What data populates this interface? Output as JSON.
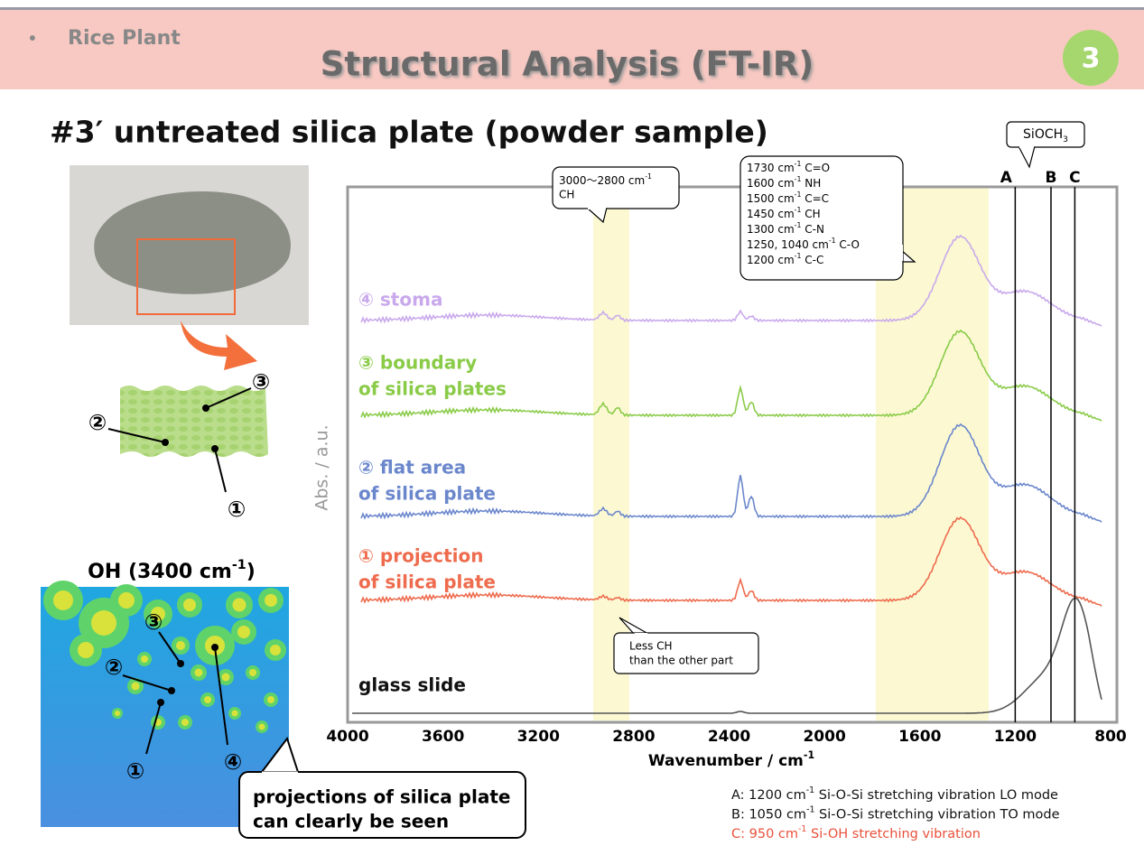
{
  "header": {
    "bullet": "•",
    "section": "Rice Plant",
    "title": "Structural Analysis (FT-IR)",
    "page": "3"
  },
  "subtitle": "#3′ untreated silica plate (powder sample)",
  "sample_figure": {
    "markers": [
      "①",
      "②",
      "③"
    ],
    "map_title": {
      "text": "OH (3400 cm",
      "sup": "-1",
      "after": ")"
    },
    "map_markers": [
      "①",
      "②",
      "③",
      "④"
    ],
    "callout": [
      "projections of silica plate",
      "can clearly be seen"
    ]
  },
  "spectrum": {
    "y_label": "Abs. / a.u.",
    "x_label": {
      "text": "Wavenumber / cm",
      "sup": "-1"
    },
    "xlim": [
      4000,
      800
    ],
    "xticks": [
      4000,
      3600,
      3200,
      2800,
      2400,
      2000,
      1600,
      1200,
      800
    ],
    "peak_labels": [
      "A",
      "B",
      "C"
    ],
    "peak_values": [
      1200,
      1050,
      950
    ],
    "siloch_label": {
      "text": "SiOCH",
      "sub": "3"
    },
    "ch_callout": [
      {
        "text": "3000～2800 cm",
        "sup": "-1"
      },
      "CH"
    ],
    "band_callout": [
      {
        "text": "1730 cm",
        "sup": "-1",
        "after": " C=O"
      },
      {
        "text": "1600 cm",
        "sup": "-1",
        "after": " NH"
      },
      {
        "text": "1500 cm",
        "sup": "-1",
        "after": " C=C"
      },
      {
        "text": "1450 cm",
        "sup": "-1",
        "after": " CH"
      },
      {
        "text": "1300 cm",
        "sup": "-1",
        "after": " C-N"
      },
      {
        "text": "1250, 1040 cm",
        "sup": "-1",
        "after": " C-O"
      },
      {
        "text": "1200 cm",
        "sup": "-1",
        "after": " C-C"
      }
    ],
    "less_ch_callout": [
      "Less CH",
      "than the other part"
    ],
    "series": [
      {
        "lines": [
          "④ stoma"
        ],
        "color": "#c9a9ec"
      },
      {
        "lines": [
          "③ boundary",
          "of silica plates"
        ],
        "color": "#8acb48"
      },
      {
        "lines": [
          "② flat area",
          "of silica plate"
        ],
        "color": "#6b87cc"
      },
      {
        "lines": [
          "① projection",
          "of silica plate"
        ],
        "color": "#ee6b4d"
      },
      {
        "lines": [
          "glass slide"
        ],
        "color": "#555555"
      }
    ],
    "notes": [
      {
        "text": "A: 1200 cm",
        "sup": "-1",
        "after": " Si-O-Si stretching vibration LO mode"
      },
      {
        "text": "B: 1050 cm",
        "sup": "-1",
        "after": " Si-O-Si stretching vibration TO mode"
      },
      {
        "text": "C: 950 cm",
        "sup": "-1",
        "after": " Si-OH stretching vibration"
      }
    ],
    "notes_colors": [
      "#111111",
      "#111111",
      "#e8503a"
    ]
  }
}
